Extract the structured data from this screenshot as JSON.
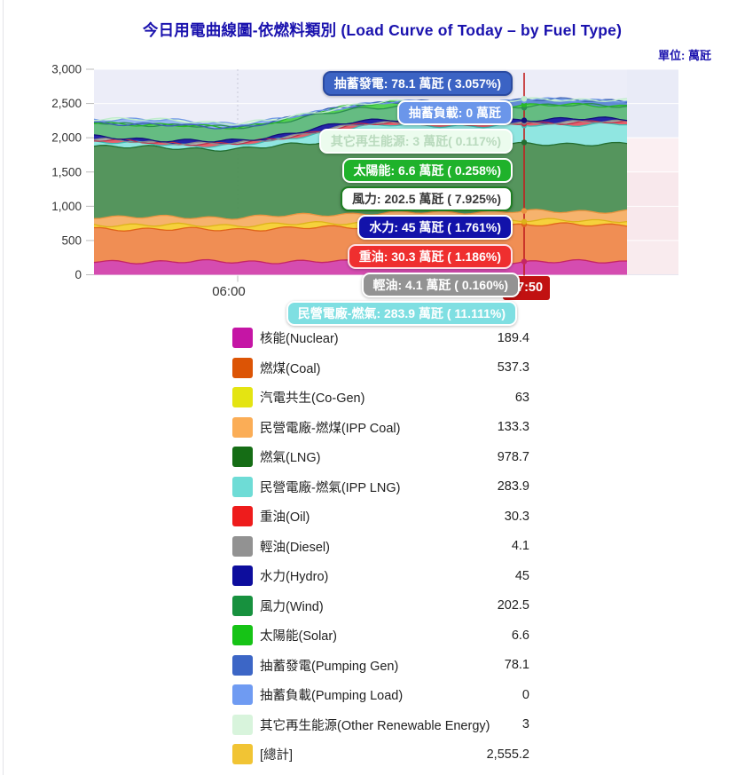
{
  "header": {
    "title": "今日用電曲線圖-依燃料類別 (Load Curve of Today – by Fuel Type)",
    "unit_label": "單位: 萬瓩"
  },
  "time_badge": {
    "text": "17:50",
    "bg": "#c11111",
    "color": "#ffffff"
  },
  "chart_data": {
    "type": "area",
    "stacked": true,
    "title": "今日用電曲線圖-依燃料類別 (Load Curve of Today – by Fuel Type)",
    "unit": "萬瓩",
    "ylim": [
      0,
      3000
    ],
    "y_ticks": [
      "3,000",
      "2,500",
      "2,000",
      "1,500",
      "1,000",
      "500",
      "0"
    ],
    "x_tick_label": "06:00",
    "current_time": "17:50",
    "current_total_display": "2,555.2",
    "plot_bg": "#ecedf8",
    "gridline_color": "#ffffff",
    "axis_text_color": "#333333",
    "current_line_color": "#c11f1f",
    "future_row_colors": [
      "#e9ebf7",
      "#e9ebf7",
      "#fbeff2",
      "#f8e8ec",
      "#f8e8ec",
      "#f9ebee"
    ],
    "legend_position": "bottom",
    "series": [
      {
        "id": "nuclear",
        "label": "核能(Nuclear)",
        "display": "189.4",
        "value_at_current": 189.4,
        "color": "#c515a5",
        "fill": "#d446ad",
        "stroke": "#c52565",
        "values": [
          190,
          190,
          190,
          190,
          190,
          190,
          190,
          190,
          190,
          190,
          190,
          190,
          190,
          190,
          190,
          190,
          190,
          190,
          190
        ]
      },
      {
        "id": "coal",
        "label": "燃煤(Coal)",
        "display": "537.3",
        "value_at_current": 537.3,
        "color": "#dc5405",
        "fill": "#f08a4e",
        "stroke": "#e0641a",
        "values": [
          480,
          478,
          475,
          472,
          470,
          472,
          480,
          490,
          500,
          510,
          518,
          525,
          530,
          534,
          537,
          538,
          540,
          540,
          540
        ]
      },
      {
        "id": "cogen",
        "label": "汽電共生(Co-Gen)",
        "display": "63",
        "value_at_current": 63,
        "color": "#e4e412",
        "fill": "#f6cf36",
        "stroke": "#ddb31a",
        "values": [
          62,
          61,
          60,
          60,
          60,
          61,
          62,
          63,
          63,
          63,
          63,
          63,
          63,
          63,
          63,
          63,
          63,
          63,
          63
        ]
      },
      {
        "id": "ipp_coal",
        "label": "民營電廠-燃煤(IPP Coal)",
        "display": "133.3",
        "value_at_current": 133.3,
        "color": "#fbad56",
        "fill": "#f6b168",
        "stroke": "#eb9440",
        "values": [
          118,
          116,
          115,
          114,
          114,
          116,
          120,
          124,
          127,
          129,
          130,
          131,
          132,
          133,
          133,
          133,
          133,
          133,
          133
        ]
      },
      {
        "id": "lng",
        "label": "燃氣(LNG)",
        "display": "978.7",
        "value_at_current": 978.7,
        "color": "#156d15",
        "fill": "#4f9258",
        "stroke": "#236e31",
        "values": [
          1030,
          1022,
          1015,
          1008,
          1000,
          995,
          1010,
          1040,
          1070,
          1090,
          1080,
          1050,
          1010,
          975,
          979,
          983,
          985,
          985,
          985
        ]
      },
      {
        "id": "ipp_lng",
        "label": "民營電廠-燃氣(IPP LNG)",
        "display": "283.9",
        "value_at_current": 283.9,
        "color": "#6edcd6",
        "fill": "#8ce5e0",
        "stroke": "#3fbcb4",
        "values": [
          62,
          58,
          54,
          51,
          50,
          55,
          75,
          105,
          140,
          175,
          205,
          230,
          250,
          268,
          284,
          285,
          286,
          286,
          286
        ]
      },
      {
        "id": "oil",
        "label": "重油(Oil)",
        "display": "30.3",
        "value_at_current": 30.3,
        "color": "#ee1c1c",
        "fill": "#e35b67",
        "stroke": "#c13049",
        "values": [
          25,
          25,
          24,
          24,
          24,
          25,
          26,
          27,
          28,
          29,
          30,
          30,
          30,
          30,
          30,
          30,
          30,
          30,
          30
        ]
      },
      {
        "id": "diesel",
        "label": "輕油(Diesel)",
        "display": "4.1",
        "value_at_current": 4.1,
        "color": "#929292",
        "fill": "#aaaaaa",
        "stroke": "#8a8a8a",
        "values": [
          4,
          4,
          4,
          4,
          4,
          4,
          4,
          4,
          4,
          4,
          4,
          4,
          4,
          4,
          4,
          4,
          4,
          4,
          4
        ]
      },
      {
        "id": "hydro",
        "label": "水力(Hydro)",
        "display": "45",
        "value_at_current": 45,
        "color": "#0d0d9d",
        "fill": "#1d1da5",
        "stroke": "#12127a",
        "values": [
          40,
          38,
          36,
          35,
          35,
          36,
          40,
          44,
          48,
          50,
          50,
          49,
          48,
          46,
          45,
          45,
          45,
          45,
          45
        ]
      },
      {
        "id": "wind",
        "label": "風力(Wind)",
        "display": "202.5",
        "value_at_current": 202.5,
        "color": "#17913e",
        "fill": "#60ba7e",
        "stroke": "#2c8e52",
        "values": [
          210,
          214,
          218,
          216,
          210,
          200,
          192,
          186,
          184,
          186,
          190,
          195,
          198,
          200,
          202,
          201,
          198,
          194,
          190
        ]
      },
      {
        "id": "solar",
        "label": "太陽能(Solar)",
        "display": "6.6",
        "value_at_current": 6.6,
        "color": "#16c316",
        "fill": "#4fd04f",
        "stroke": "#28b828",
        "values": [
          0,
          0,
          0,
          0,
          0,
          2,
          15,
          35,
          55,
          65,
          60,
          48,
          32,
          18,
          7,
          3,
          1,
          0,
          0
        ]
      },
      {
        "id": "pump_gen",
        "label": "抽蓄發電(Pumping Gen)",
        "display": "78.1",
        "value_at_current": 78.1,
        "color": "#3c66c6",
        "fill": "#5e88d5",
        "stroke": "#3a60b2",
        "values": [
          0,
          0,
          0,
          0,
          0,
          0,
          0,
          0,
          0,
          0,
          0,
          5,
          15,
          40,
          78,
          80,
          80,
          78,
          75
        ]
      },
      {
        "id": "pump_load",
        "label": "抽蓄負載(Pumping Load)",
        "display": "0",
        "value_at_current": 0,
        "color": "#6f9bf2",
        "fill": "#93b5f0",
        "stroke": "#6f97e6",
        "values": [
          55,
          62,
          68,
          70,
          66,
          50,
          25,
          8,
          0,
          0,
          0,
          0,
          0,
          0,
          0,
          0,
          0,
          0,
          0
        ]
      },
      {
        "id": "other_re",
        "label": "其它再生能源(Other Renewable Energy)",
        "display": "3",
        "value_at_current": 3,
        "color": "#d8f4dc",
        "fill": "#dcf8e0",
        "stroke": "#bfeccb",
        "values": [
          3,
          3,
          3,
          3,
          3,
          3,
          3,
          3,
          3,
          3,
          3,
          3,
          3,
          3,
          3,
          3,
          3,
          3,
          3
        ]
      }
    ],
    "legend_total": {
      "label": "[總計]",
      "display": "2,555.2",
      "color": "#f1c434"
    }
  },
  "tooltips": [
    {
      "name": "tooltip-pumping-gen",
      "text": "抽蓄發電: 78.1 萬瓩 ( 3.057%)",
      "bg": "#3b63c4",
      "border": "#2a4aa0",
      "color": "#ffffff"
    },
    {
      "name": "tooltip-pumping-load",
      "text": "抽蓄負載: 0 萬瓩",
      "bg": "#6b96ea",
      "border": "#ffffff",
      "color": "#ffffff"
    },
    {
      "name": "tooltip-other-renewable",
      "text": "其它再生能源: 3 萬瓩( 0.117%)",
      "bg": "#ecfcee",
      "border": "#ffffff",
      "color": "#b9dabd"
    },
    {
      "name": "tooltip-solar",
      "text": "太陽能: 6.6 萬瓩 ( 0.258%)",
      "bg": "#1fb22b",
      "border": "#ffffff",
      "color": "#ffffff"
    },
    {
      "name": "tooltip-wind",
      "text": "風力: 202.5 萬瓩 ( 7.925%)",
      "bg": "#ffffff",
      "border": "#1e7e22",
      "color": "#3a3a3a"
    },
    {
      "name": "tooltip-hydro",
      "text": "水力: 45 萬瓩 ( 1.761%)",
      "bg": "#1212aa",
      "border": "#ffffff",
      "color": "#ffffff"
    },
    {
      "name": "tooltip-oil",
      "text": "重油: 30.3 萬瓩 ( 1.186%)",
      "bg": "#ef2f2f",
      "border": "#ffdfe4",
      "color": "#ffffff"
    },
    {
      "name": "tooltip-diesel",
      "text": "輕油: 4.1 萬瓩 ( 0.160%)",
      "bg": "#939393",
      "border": "#ffffff",
      "color": "#ffffff"
    },
    {
      "name": "tooltip-ipp-lng",
      "text": "民營電廠-燃氣: 283.9 萬瓩 ( 11.111%)",
      "bg": "#7fdfe2",
      "border": "#ffffff",
      "color": "#ffffff"
    }
  ]
}
